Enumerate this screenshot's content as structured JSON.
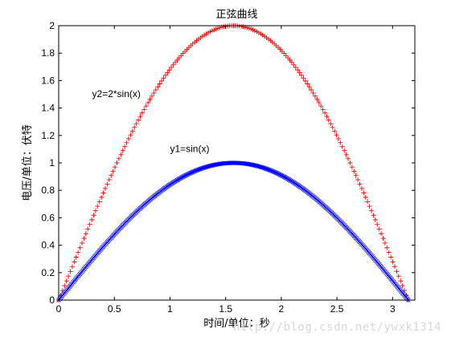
{
  "chart_data": {
    "type": "line",
    "title": "正弦曲线",
    "xlabel": "时间/单位：秒",
    "ylabel": "电压/单位：伏特",
    "xlim": [
      0,
      3.2
    ],
    "ylim": [
      0,
      2
    ],
    "xticks": [
      0,
      0.5,
      1,
      1.5,
      2,
      2.5,
      3
    ],
    "xtick_labels": [
      "0",
      "0.5",
      "1",
      "1.5",
      "2",
      "2.5",
      "3"
    ],
    "yticks": [
      0,
      0.2,
      0.4,
      0.6,
      0.8,
      1,
      1.2,
      1.4,
      1.6,
      1.8,
      2
    ],
    "ytick_labels": [
      "0",
      "0.2",
      "0.4",
      "0.6",
      "0.8",
      "1",
      "1.2",
      "1.4",
      "1.6",
      "1.8",
      "2"
    ],
    "grid": false,
    "series": [
      {
        "label": "y2=2*sin(x)",
        "function": "2*sin(x)",
        "x_range": [
          0,
          3.14159
        ],
        "marker": "+",
        "color": "#ff0000",
        "point_count": 181
      },
      {
        "label": "y1=sin(x)",
        "function": "sin(x)",
        "x_range": [
          0,
          3.14159
        ],
        "marker": "x",
        "color": "#0000ff",
        "point_count": 361
      }
    ],
    "annotations": [
      {
        "text": "y2=2*sin(x)",
        "x": 0.3,
        "y": 1.48
      },
      {
        "text": "y1=sin(x)",
        "x": 1.0,
        "y": 1.08
      }
    ]
  },
  "watermark": "http://blog.csdn.net/ywxk1314"
}
